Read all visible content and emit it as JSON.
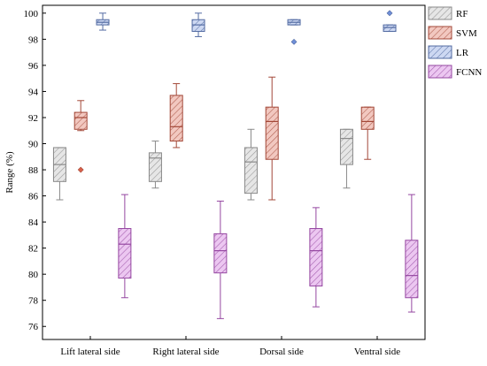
{
  "chart_data": {
    "type": "box",
    "title": "",
    "xlabel": "",
    "ylabel": "Range (%)",
    "ylim": [
      75,
      100.6
    ],
    "yticks": [
      76,
      78,
      80,
      82,
      84,
      86,
      88,
      90,
      92,
      94,
      96,
      98,
      100
    ],
    "grid": false,
    "legend_position": "top-right",
    "categories": [
      "Lift lateral side",
      "Right lateral side",
      "Dorsal side",
      "Ventral side"
    ],
    "series": [
      {
        "name": "RF",
        "color": "#b8b8b8",
        "boxes": [
          {
            "whisker_low": 85.7,
            "q1": 87.1,
            "median": 88.4,
            "q3": 89.7,
            "whisker_high": 89.7,
            "outliers": []
          },
          {
            "whisker_low": 86.6,
            "q1": 87.1,
            "median": 88.9,
            "q3": 89.3,
            "whisker_high": 90.2,
            "outliers": []
          },
          {
            "whisker_low": 85.7,
            "q1": 86.2,
            "median": 88.6,
            "q3": 89.7,
            "whisker_high": 91.1,
            "outliers": []
          },
          {
            "whisker_low": 86.6,
            "q1": 88.4,
            "median": 90.4,
            "q3": 91.1,
            "whisker_high": 91.1,
            "outliers": []
          }
        ]
      },
      {
        "name": "SVM",
        "color": "#d9604a",
        "boxes": [
          {
            "whisker_low": 91.0,
            "q1": 91.1,
            "median": 92.0,
            "q3": 92.4,
            "whisker_high": 93.3,
            "outliers": [
              88.0
            ]
          },
          {
            "whisker_low": 89.7,
            "q1": 90.2,
            "median": 91.3,
            "q3": 93.7,
            "whisker_high": 94.6,
            "outliers": []
          },
          {
            "whisker_low": 85.7,
            "q1": 88.8,
            "median": 91.7,
            "q3": 92.8,
            "whisker_high": 95.1,
            "outliers": []
          },
          {
            "whisker_low": 88.8,
            "q1": 91.1,
            "median": 91.7,
            "q3": 92.8,
            "whisker_high": 92.8,
            "outliers": []
          }
        ]
      },
      {
        "name": "LR",
        "color": "#6f8fd8",
        "boxes": [
          {
            "whisker_low": 98.7,
            "q1": 99.1,
            "median": 99.3,
            "q3": 99.5,
            "whisker_high": 100.0,
            "outliers": []
          },
          {
            "whisker_low": 98.2,
            "q1": 98.6,
            "median": 99.1,
            "q3": 99.5,
            "whisker_high": 100.0,
            "outliers": []
          },
          {
            "whisker_low": 99.1,
            "q1": 99.1,
            "median": 99.3,
            "q3": 99.5,
            "whisker_high": 99.5,
            "outliers": [
              97.8
            ]
          },
          {
            "whisker_low": 98.6,
            "q1": 98.6,
            "median": 98.9,
            "q3": 99.1,
            "whisker_high": 99.1,
            "outliers": [
              100.0
            ]
          }
        ]
      },
      {
        "name": "FCNN",
        "color": "#c75fd6",
        "boxes": [
          {
            "whisker_low": 78.2,
            "q1": 79.7,
            "median": 82.3,
            "q3": 83.5,
            "whisker_high": 86.1,
            "outliers": []
          },
          {
            "whisker_low": 76.6,
            "q1": 80.1,
            "median": 81.8,
            "q3": 83.1,
            "whisker_high": 85.6,
            "outliers": []
          },
          {
            "whisker_low": 77.5,
            "q1": 79.1,
            "median": 81.8,
            "q3": 83.5,
            "whisker_high": 85.1,
            "outliers": []
          },
          {
            "whisker_low": 77.1,
            "q1": 78.2,
            "median": 79.9,
            "q3": 82.6,
            "whisker_high": 86.1,
            "outliers": []
          }
        ]
      }
    ]
  }
}
